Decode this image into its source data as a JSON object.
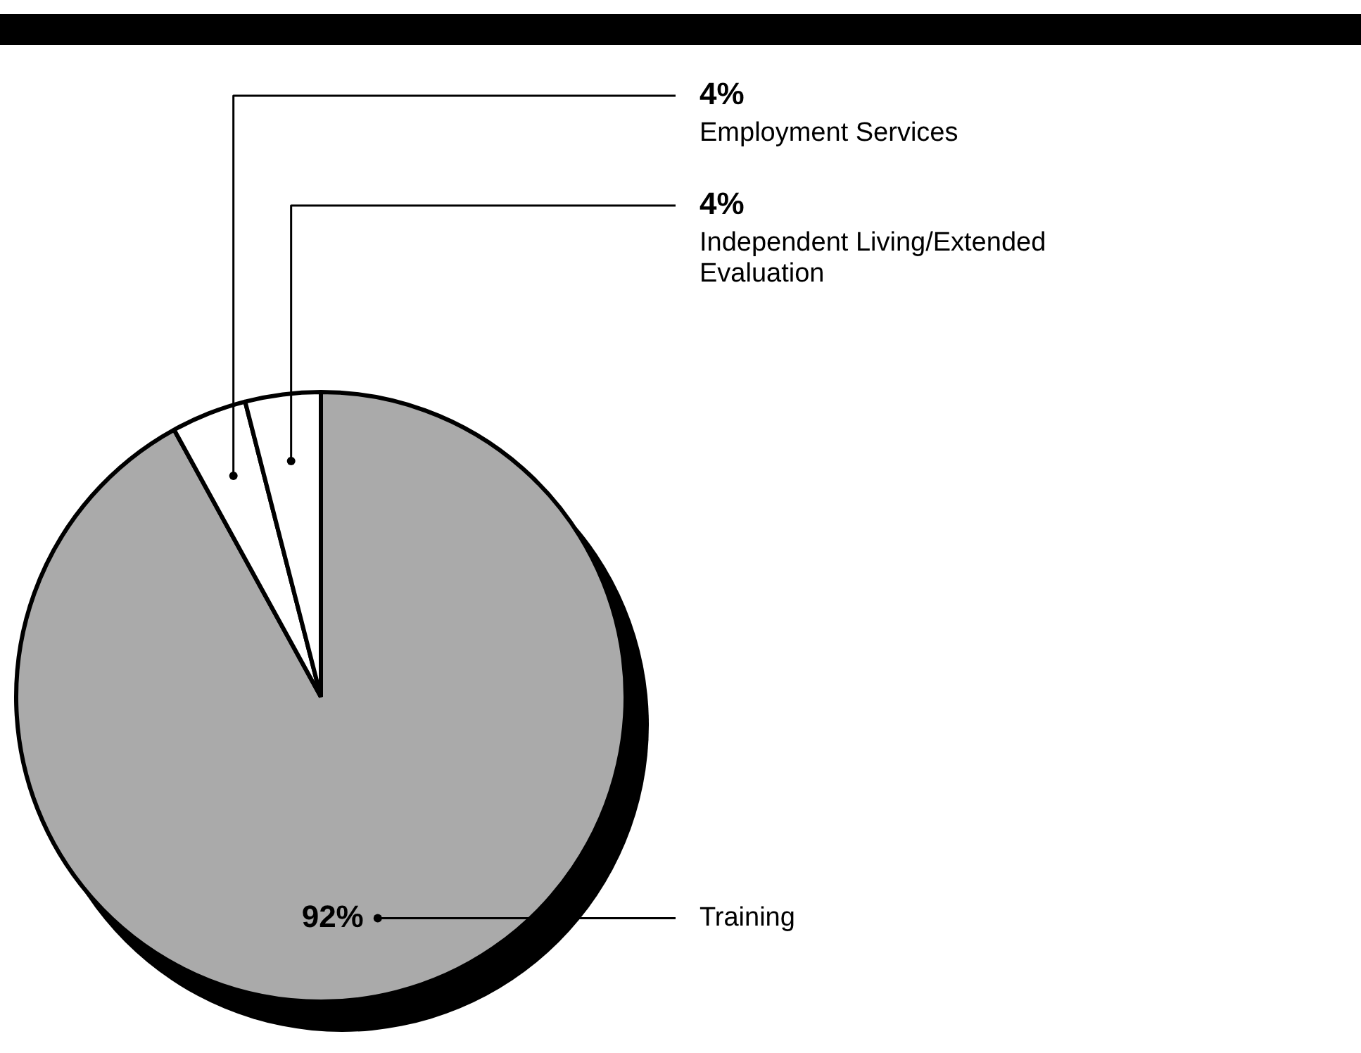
{
  "chart_data": {
    "type": "pie",
    "categories": [
      "Training",
      "Employment Services",
      "Independent Living/Extended Evaluation"
    ],
    "values": [
      92,
      4,
      4
    ],
    "colors": [
      "#aaaaaa",
      "#ffffff",
      "#ffffff"
    ],
    "value_labels": [
      "92%",
      "4%",
      "4%"
    ]
  }
}
